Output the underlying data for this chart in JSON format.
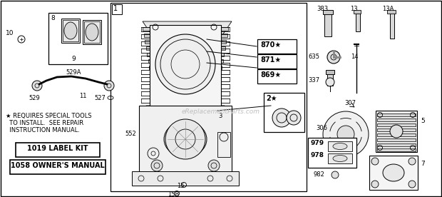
{
  "bg_color": "#ffffff",
  "watermark": "eReplacementParts.com",
  "kit_label": "1019 LABEL KIT",
  "manual_label": "1058 OWNER'S MANUAL",
  "footnote_line1": "★ REQUIRES SPECIAL TOOLS",
  "footnote_line2": "  TO INSTALL.  SEE REPAIR",
  "footnote_line3": "  INSTRUCTION MANUAL."
}
